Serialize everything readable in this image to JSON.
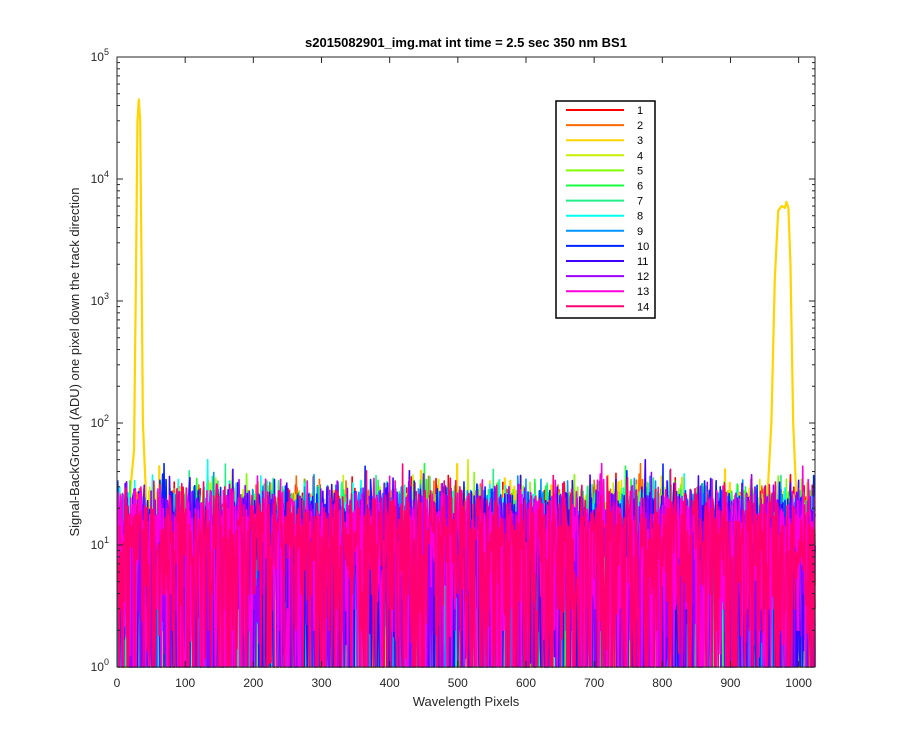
{
  "chart_data": {
    "type": "line",
    "title": "s2015082901_img.mat int time = 2.5 sec  350 nm BS1",
    "xlabel": "Wavelength Pixels",
    "ylabel": "Signal-BackGround (ADU) one pixel down the track direction",
    "xlim": [
      0,
      1024
    ],
    "ylim": [
      1,
      100000
    ],
    "yscale": "log",
    "grid": false,
    "legend_position": "top-right",
    "x_ticks": [
      "0",
      "100",
      "200",
      "300",
      "400",
      "500",
      "600",
      "700",
      "800",
      "900",
      "1000"
    ],
    "y_ticks": [
      {
        "base": "10",
        "exp": "0"
      },
      {
        "base": "10",
        "exp": "1"
      },
      {
        "base": "10",
        "exp": "2"
      },
      {
        "base": "10",
        "exp": "3"
      },
      {
        "base": "10",
        "exp": "4"
      },
      {
        "base": "10",
        "exp": "5"
      }
    ],
    "noise_range": [
      1,
      50
    ],
    "series": [
      {
        "name": "1",
        "color": "#ff0000"
      },
      {
        "name": "2",
        "color": "#ff6a00"
      },
      {
        "name": "3",
        "color": "#ffd400",
        "peaks": [
          {
            "x": [
              20,
              25,
              28,
              30,
              32,
              34,
              36,
              38,
              42
            ],
            "y": [
              30,
              60,
              2000,
              30000,
              45000,
              30000,
              2000,
              100,
              30
            ]
          },
          {
            "x": [
              955,
              960,
              965,
              970,
              975,
              980,
              982,
              985,
              988,
              992,
              996
            ],
            "y": [
              30,
              100,
              1500,
              5500,
              6000,
              5800,
              6500,
              5800,
              2000,
              100,
              30
            ]
          }
        ]
      },
      {
        "name": "4",
        "color": "#c8f000"
      },
      {
        "name": "5",
        "color": "#7fff00"
      },
      {
        "name": "6",
        "color": "#1aff3c"
      },
      {
        "name": "7",
        "color": "#22ee88"
      },
      {
        "name": "8",
        "color": "#00ffee"
      },
      {
        "name": "9",
        "color": "#0094ff"
      },
      {
        "name": "10",
        "color": "#0026ff"
      },
      {
        "name": "11",
        "color": "#4400ff"
      },
      {
        "name": "12",
        "color": "#9d00ff"
      },
      {
        "name": "13",
        "color": "#ff00dc"
      },
      {
        "name": "14",
        "color": "#ff0070"
      }
    ]
  }
}
